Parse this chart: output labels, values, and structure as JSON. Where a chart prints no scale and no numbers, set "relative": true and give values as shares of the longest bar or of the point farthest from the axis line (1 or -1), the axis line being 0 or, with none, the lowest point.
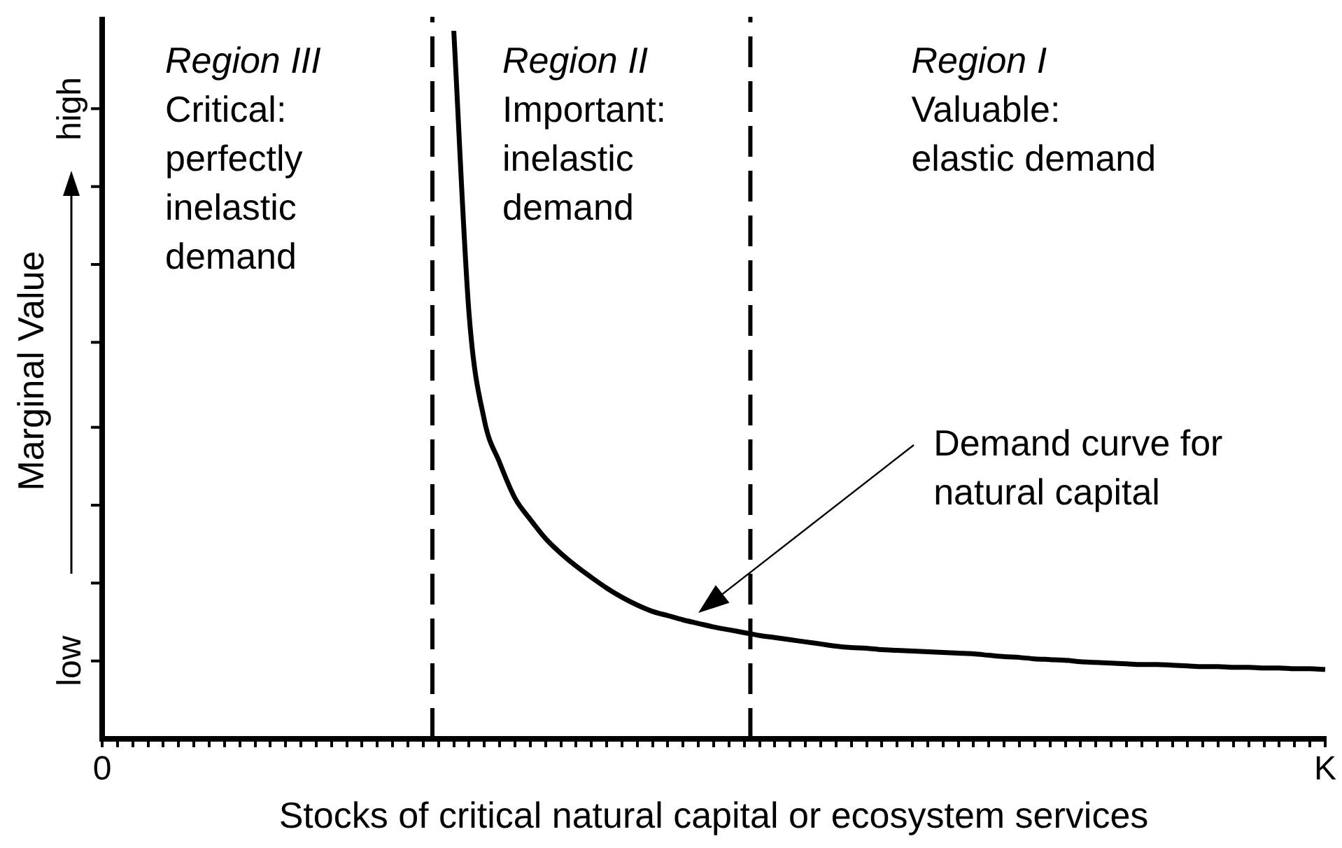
{
  "chart_data": {
    "type": "line",
    "relative": true,
    "xlabel": "Stocks of critical natural capital or ecosystem services",
    "ylabel": "Marginal Value",
    "categories": [
      "0",
      null,
      null,
      null,
      null,
      null,
      null,
      null,
      null,
      null,
      null,
      null,
      null,
      null,
      null,
      null,
      null,
      null,
      null,
      null,
      null,
      null,
      null,
      null,
      null,
      null,
      null,
      null,
      null,
      null,
      null,
      null,
      null,
      null,
      null,
      null,
      null,
      null,
      null,
      null,
      null,
      null,
      null,
      null,
      null,
      null,
      null,
      null,
      null,
      null,
      null,
      null,
      null,
      null,
      null,
      null,
      null,
      null,
      null,
      null,
      null,
      null,
      null,
      null,
      null,
      null,
      null,
      null,
      null,
      null,
      null,
      null,
      null,
      null,
      null,
      null,
      null,
      null,
      null,
      null,
      "K"
    ],
    "marker": "none",
    "line_style": "solid",
    "legend": false,
    "series": [
      {
        "color": "#000000",
        "values": [
          null,
          null,
          null,
          null,
          null,
          null,
          null,
          null,
          null,
          null,
          null,
          null,
          null,
          null,
          null,
          null,
          null,
          null,
          null,
          null,
          null,
          null,
          null,
          1.0,
          0.6,
          0.45,
          0.39,
          0.34,
          0.31,
          0.283,
          0.262,
          0.244,
          0.228,
          0.213,
          0.2,
          0.189,
          0.18,
          0.174,
          0.168,
          0.163,
          0.158,
          0.154,
          0.15,
          0.146,
          0.143,
          0.14,
          0.137,
          0.134,
          0.131,
          0.129,
          0.128,
          0.126,
          0.125,
          0.124,
          0.123,
          0.122,
          0.121,
          0.12,
          0.118,
          0.116,
          0.115,
          0.113,
          0.112,
          0.111,
          0.109,
          0.108,
          0.107,
          0.106,
          0.105,
          0.105,
          0.104,
          0.103,
          0.102,
          0.102,
          0.101,
          0.101,
          0.1,
          0.1,
          0.099,
          0.099,
          0.098
        ]
      }
    ],
    "annotations": [
      "Region III\nCritical:\nperfectly\ninelastic\ndemand",
      "Region II\nImportant:\ninelastic\ndemand",
      "Region I\nValuable:\nelastic demand",
      "Demand curve for\nnatural capital",
      "high",
      "low"
    ]
  }
}
